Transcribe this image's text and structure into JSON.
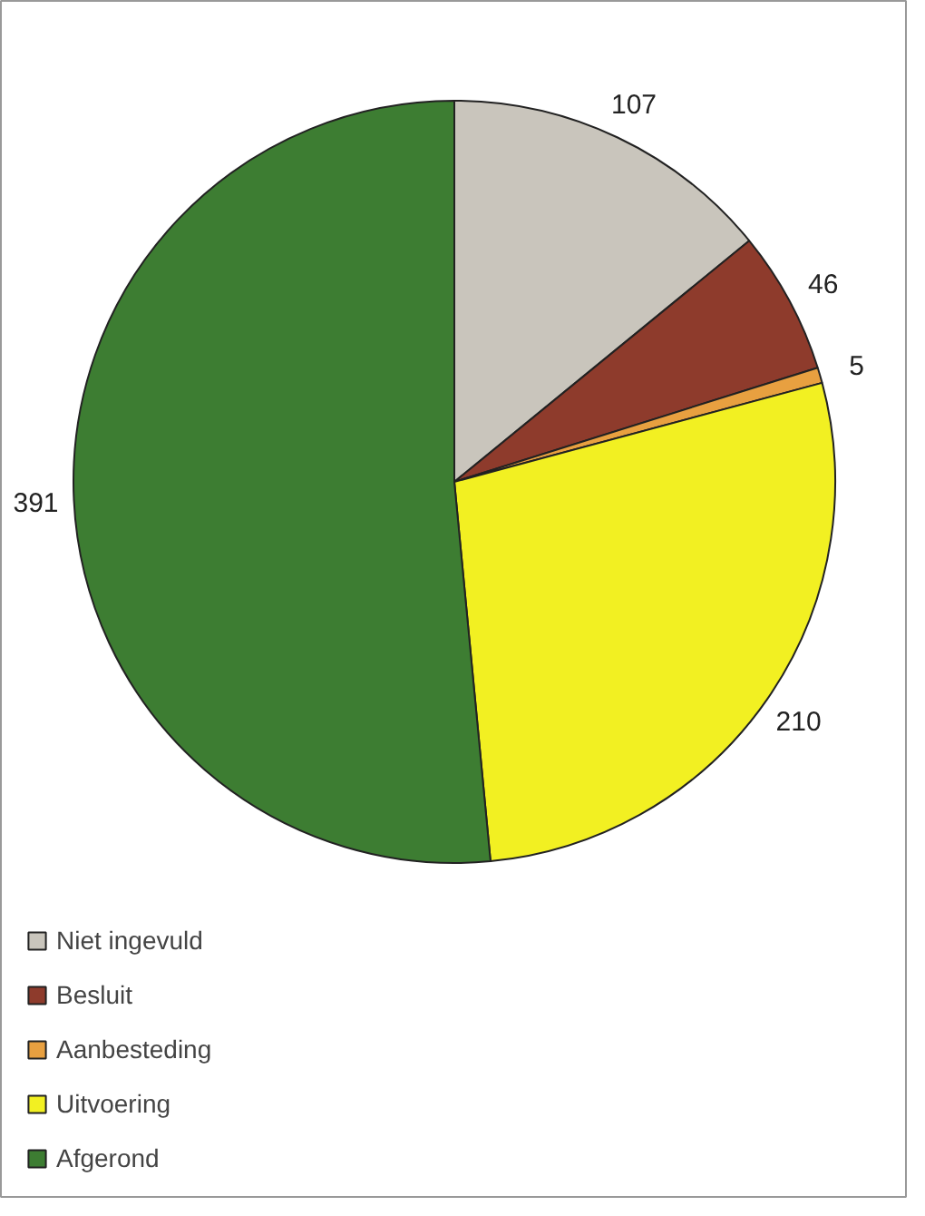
{
  "chart_data": {
    "type": "pie",
    "categories": [
      "Niet ingevuld",
      "Besluit",
      "Aanbesteding",
      "Uitvoering",
      "Afgerond"
    ],
    "values": [
      107,
      46,
      5,
      210,
      391
    ],
    "colors": [
      "#c9c5bc",
      "#8e3b2c",
      "#e8a040",
      "#f2f022",
      "#3d7d32"
    ],
    "data_labels": true,
    "legend": "bottom left"
  }
}
